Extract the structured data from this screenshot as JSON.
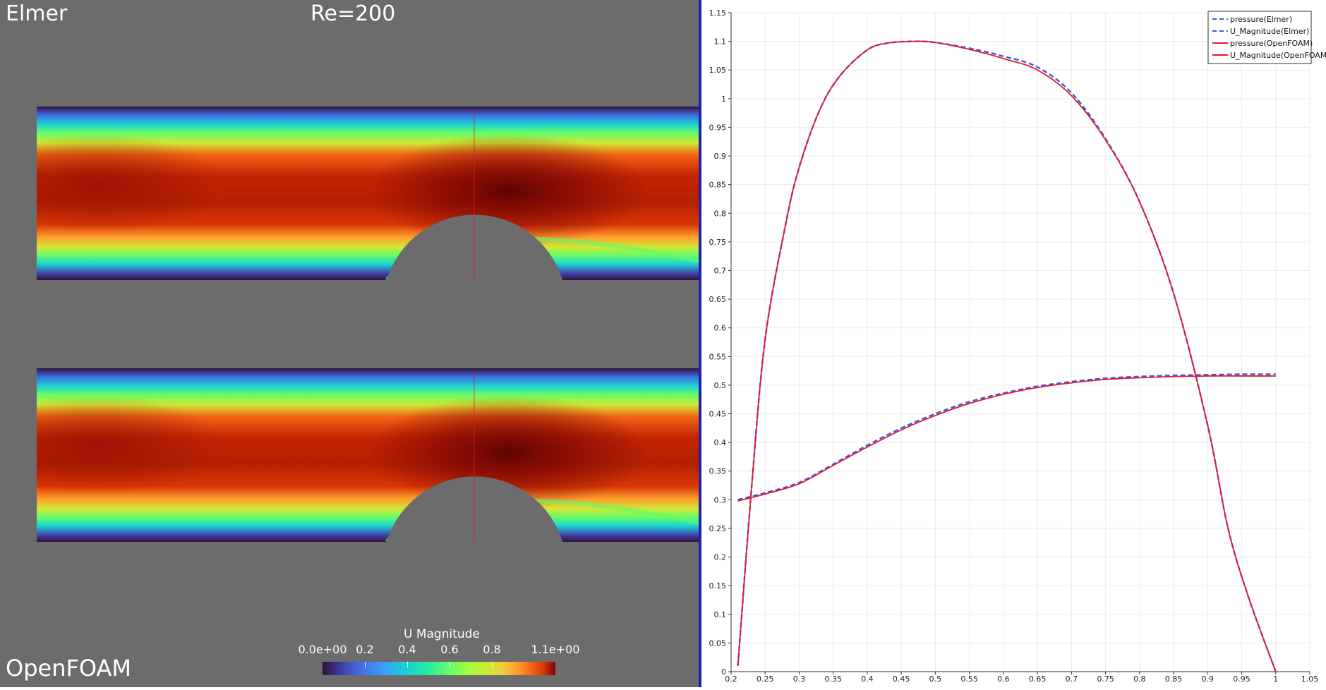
{
  "render_view": {
    "top_label": "Elmer",
    "reynolds_label": "Re=200",
    "bottom_label": "OpenFOAM",
    "colorbar": {
      "title": "U Magnitude",
      "min_label": "0.0e+00",
      "max_label": "1.1e+00",
      "tick_labels": [
        "0.2",
        "0.4",
        "0.6",
        "0.8"
      ],
      "range": [
        0,
        1.1
      ],
      "colormap": "turbo"
    }
  },
  "chart_data": {
    "type": "line",
    "title": "",
    "xlabel": "",
    "ylabel": "",
    "xlim": [
      0.2,
      1.05
    ],
    "ylim": [
      0,
      1.15
    ],
    "x_ticks": [
      "0.2",
      "0.25",
      "0.3",
      "0.35",
      "0.4",
      "0.45",
      "0.5",
      "0.55",
      "0.6",
      "0.65",
      "0.7",
      "0.75",
      "0.8",
      "0.85",
      "0.9",
      "0.95",
      "1",
      "1.05"
    ],
    "y_ticks": [
      "0",
      "0.05",
      "0.1",
      "0.15",
      "0.2",
      "0.25",
      "0.3",
      "0.35",
      "0.4",
      "0.45",
      "0.5",
      "0.55",
      "0.6",
      "0.65",
      "0.7",
      "0.75",
      "0.8",
      "0.85",
      "0.9",
      "0.95",
      "1",
      "1.05",
      "1.1",
      "1.15"
    ],
    "grid": true,
    "legend_position": "top-right",
    "series": [
      {
        "name": "pressure(Elmer)",
        "color": "#3b5bdb",
        "dash": "dashed",
        "x": [
          0.21,
          0.25,
          0.3,
          0.35,
          0.4,
          0.45,
          0.5,
          0.55,
          0.6,
          0.65,
          0.7,
          0.75,
          0.8,
          0.85,
          0.9,
          0.95,
          1.0
        ],
        "y": [
          0.3,
          0.312,
          0.33,
          0.362,
          0.395,
          0.425,
          0.45,
          0.471,
          0.486,
          0.498,
          0.506,
          0.512,
          0.515,
          0.517,
          0.518,
          0.519,
          0.519
        ]
      },
      {
        "name": "U_Magnitude(Elmer)",
        "color": "#3b5bdb",
        "dash": "dashed",
        "x": [
          0.21,
          0.23,
          0.25,
          0.28,
          0.3,
          0.33,
          0.36,
          0.4,
          0.43,
          0.47,
          0.5,
          0.55,
          0.6,
          0.65,
          0.7,
          0.75,
          0.8,
          0.85,
          0.9,
          0.93,
          0.96,
          1.0
        ],
        "y": [
          0.01,
          0.32,
          0.58,
          0.78,
          0.88,
          0.98,
          1.04,
          1.085,
          1.097,
          1.1,
          1.098,
          1.088,
          1.074,
          1.055,
          1.01,
          0.93,
          0.82,
          0.66,
          0.43,
          0.25,
          0.13,
          0.0
        ]
      },
      {
        "name": "pressure(OpenFOAM)",
        "color": "#e8182f",
        "dash": "solid",
        "x": [
          0.21,
          0.25,
          0.3,
          0.35,
          0.4,
          0.45,
          0.5,
          0.55,
          0.6,
          0.65,
          0.7,
          0.75,
          0.8,
          0.85,
          0.9,
          0.95,
          1.0
        ],
        "y": [
          0.298,
          0.31,
          0.328,
          0.36,
          0.392,
          0.422,
          0.447,
          0.468,
          0.484,
          0.496,
          0.504,
          0.51,
          0.513,
          0.515,
          0.516,
          0.516,
          0.516
        ]
      },
      {
        "name": "U_Magnitude(OpenFOAM)",
        "color": "#e8182f",
        "dash": "solid",
        "x": [
          0.21,
          0.23,
          0.25,
          0.28,
          0.3,
          0.33,
          0.36,
          0.4,
          0.43,
          0.47,
          0.5,
          0.55,
          0.6,
          0.65,
          0.7,
          0.75,
          0.8,
          0.85,
          0.9,
          0.93,
          0.96,
          1.0
        ],
        "y": [
          0.01,
          0.32,
          0.58,
          0.78,
          0.88,
          0.98,
          1.04,
          1.085,
          1.097,
          1.1,
          1.098,
          1.086,
          1.07,
          1.05,
          1.005,
          0.928,
          0.82,
          0.66,
          0.43,
          0.25,
          0.13,
          0.0
        ]
      }
    ]
  }
}
